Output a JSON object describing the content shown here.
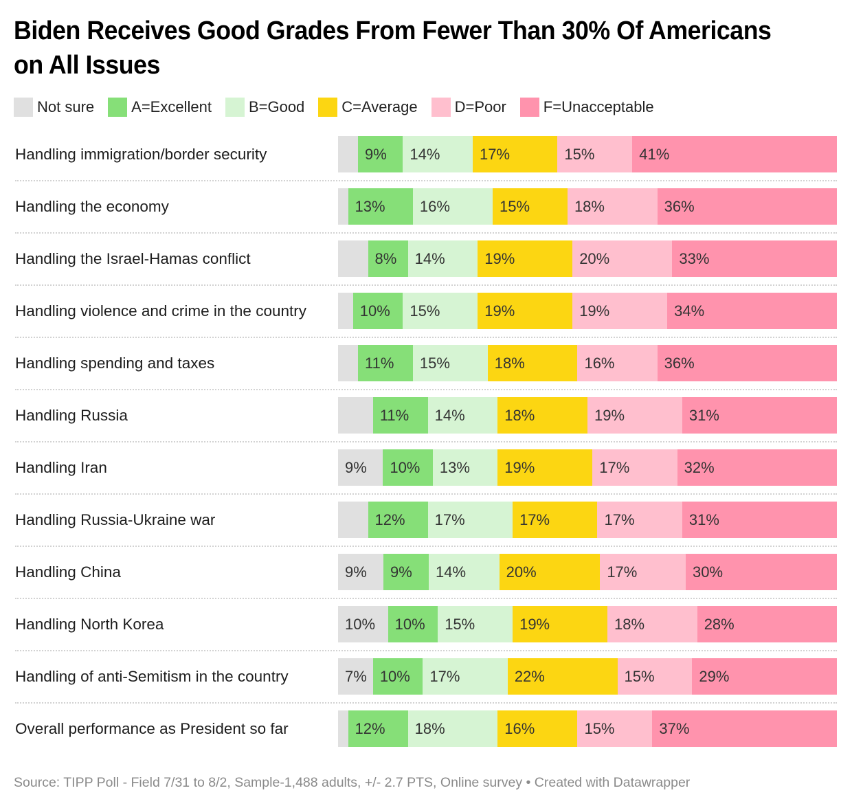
{
  "chart_data": {
    "type": "bar",
    "orientation": "horizontal",
    "stacked": true,
    "title": "Biden Receives Good Grades From Fewer Than 30% Of Americans on All Issues",
    "xlabel": "",
    "ylabel": "",
    "xlim": [
      0,
      100
    ],
    "grid": false,
    "legend_position": "top",
    "unit": "%",
    "categories": [
      "Handling immigration/border security",
      "Handling the economy",
      "Handling the Israel-Hamas conflict",
      "Handling violence and crime in the country",
      "Handling spending and taxes",
      "Handling Russia",
      "Handling Iran",
      "Handling Russia-Ukraine war",
      "Handling China",
      "Handling North Korea",
      "Handling of anti-Semitism in the country",
      "Overall performance as President so far"
    ],
    "series": [
      {
        "name": "Not sure",
        "color": "#e0e0e0",
        "values": [
          4,
          2,
          6,
          3,
          4,
          7,
          9,
          6,
          9,
          10,
          7,
          2
        ],
        "labeled": [
          false,
          false,
          false,
          false,
          false,
          false,
          true,
          false,
          true,
          true,
          true,
          false
        ]
      },
      {
        "name": "A=Excellent",
        "color": "#86df78",
        "values": [
          9,
          13,
          8,
          10,
          11,
          11,
          10,
          12,
          9,
          10,
          10,
          12
        ]
      },
      {
        "name": "B=Good",
        "color": "#d6f4d3",
        "values": [
          14,
          16,
          14,
          15,
          15,
          14,
          13,
          17,
          14,
          15,
          17,
          18
        ]
      },
      {
        "name": "C=Average",
        "color": "#fcd612",
        "values": [
          17,
          15,
          19,
          19,
          18,
          18,
          19,
          17,
          20,
          19,
          22,
          16
        ]
      },
      {
        "name": "D=Poor",
        "color": "#ffbfce",
        "values": [
          15,
          18,
          20,
          19,
          16,
          19,
          17,
          17,
          17,
          18,
          15,
          15
        ]
      },
      {
        "name": "F=Unacceptable",
        "color": "#ff93ad",
        "values": [
          41,
          36,
          33,
          34,
          36,
          31,
          32,
          31,
          30,
          28,
          29,
          37
        ]
      }
    ]
  },
  "footer": "Source: TIPP Poll - Field 7/31 to 8/2, Sample-1,488 adults, +/- 2.7 PTS, Online survey • Created with Datawrapper"
}
